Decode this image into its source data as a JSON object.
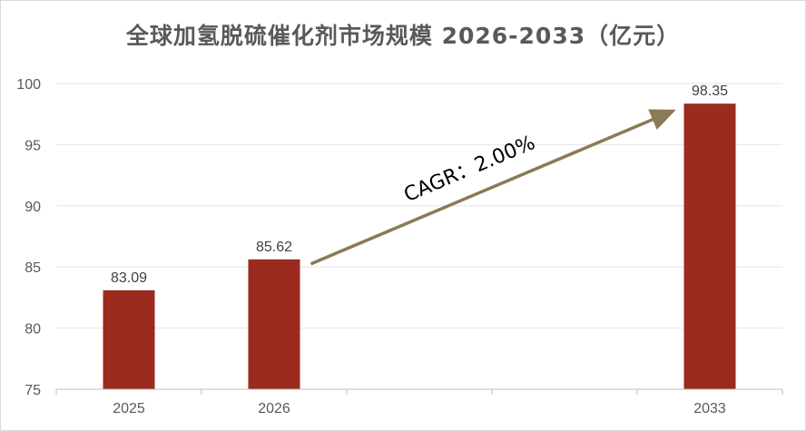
{
  "chart_data": {
    "type": "bar",
    "title": "全球加氢脱硫催化剂市场规模 2026-2033（亿元）",
    "categories": [
      "2025",
      "2026",
      "2033"
    ],
    "values": [
      83.09,
      85.62,
      98.35
    ],
    "value_labels": [
      "83.09",
      "85.62",
      "98.35"
    ],
    "ylim": [
      75,
      100
    ],
    "yticks": [
      75,
      80,
      85,
      90,
      95,
      100
    ],
    "grid": true,
    "bar_color": "#9b2a1f",
    "annotation": {
      "text": "CAGR：2.00%",
      "arrow_color": "#8b7a55",
      "from_category": "2026",
      "to_category": "2033"
    }
  }
}
